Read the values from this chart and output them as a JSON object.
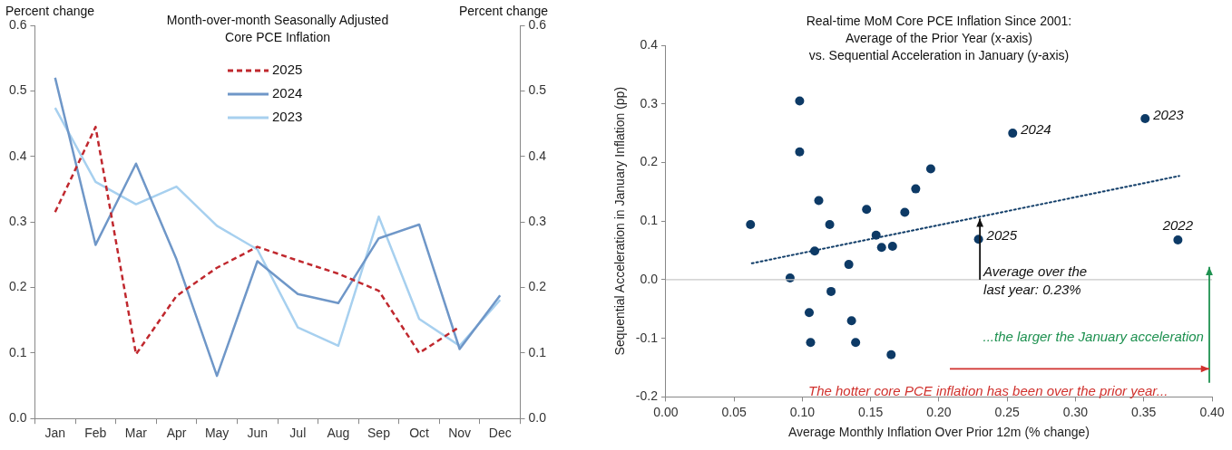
{
  "chart_data": [
    {
      "type": "line",
      "title": "Month-over-month Seasonally Adjusted\nCore PCE Inflation",
      "ylabel": "Percent change",
      "y2label": "Percent change",
      "categories": [
        "Jan",
        "Feb",
        "Mar",
        "Apr",
        "May",
        "Jun",
        "Jul",
        "Aug",
        "Sep",
        "Oct",
        "Nov",
        "Dec"
      ],
      "series": [
        {
          "name": "2025",
          "color": "#c0282e",
          "line_style": "dashed",
          "values": [
            0.315,
            0.445,
            0.098,
            0.187,
            0.23,
            0.262,
            0.241,
            0.221,
            0.195,
            0.1,
            0.14,
            null
          ]
        },
        {
          "name": "2024",
          "color": "#6f97c8",
          "line_style": "solid",
          "values": [
            0.52,
            0.265,
            0.389,
            0.243,
            0.065,
            0.24,
            0.19,
            0.176,
            0.275,
            0.296,
            0.106,
            0.188
          ]
        },
        {
          "name": "2023",
          "color": "#a7d0ef",
          "line_style": "solid",
          "values": [
            0.474,
            0.361,
            0.327,
            0.354,
            0.294,
            0.258,
            0.139,
            0.111,
            0.308,
            0.152,
            0.111,
            0.181
          ]
        }
      ],
      "ylim": [
        0,
        0.6
      ],
      "yticks": [
        {
          "value": 0,
          "label": "0.0"
        },
        0.1,
        0.2,
        0.3,
        0.4,
        0.5,
        0.6
      ],
      "y2lim": [
        0,
        0.6
      ],
      "y2ticks": [
        {
          "value": 0,
          "label": "0.0"
        },
        0.1,
        0.2,
        0.3,
        0.4,
        0.5,
        0.6
      ],
      "legend": "top",
      "marker": "none"
    },
    {
      "type": "scatter",
      "title": "Real-time MoM Core PCE Inflation Since 2001:\nAverage of the Prior Year (x-axis)\nvs. Sequential Acceleration in January (y-axis)",
      "xlabel": "Average Monthly Inflation Over Prior 12m (% change)",
      "ylabel": "Sequential Acceleration in January Inflation (pp)",
      "series": [
        {
          "type": "scatter",
          "color": "#0d3a66",
          "marker": "circle",
          "x": [
            0.062,
            0.098,
            0.098,
            0.112,
            0.12,
            0.147,
            0.154,
            0.158,
            0.166,
            0.175,
            0.183,
            0.194,
            0.109,
            0.091,
            0.134,
            0.121,
            0.105,
            0.136,
            0.106,
            0.139,
            0.165,
            0.254,
            0.351,
            0.375,
            0.229
          ],
          "values": [
            0.094,
            0.305,
            0.218,
            0.135,
            0.094,
            0.12,
            0.076,
            0.055,
            0.057,
            0.115,
            0.155,
            0.189,
            0.049,
            0.003,
            0.026,
            -0.02,
            -0.056,
            -0.07,
            -0.107,
            -0.107,
            -0.128,
            0.25,
            0.275,
            0.068,
            0.069
          ]
        },
        {
          "type": "line",
          "color": "#0d3a66",
          "marker": "none",
          "line_style": "dotted",
          "x": [
            0.063,
            0.376
          ],
          "values": [
            0.028,
            0.177
          ]
        }
      ],
      "xlim": [
        0,
        0.4
      ],
      "xticks": [
        {
          "value": 0,
          "label": "0.00"
        },
        {
          "value": 0.05,
          "label": "0.05"
        },
        {
          "value": 0.1,
          "label": "0.10"
        },
        {
          "value": 0.15,
          "label": "0.15"
        },
        {
          "value": 0.2,
          "label": "0.20"
        },
        {
          "value": 0.25,
          "label": "0.25"
        },
        {
          "value": 0.3,
          "label": "0.30"
        },
        {
          "value": 0.35,
          "label": "0.35"
        },
        {
          "value": 0.4,
          "label": "0.40"
        }
      ],
      "ylim": [
        -0.2,
        0.4
      ],
      "yticks": [
        -0.2,
        -0.1,
        {
          "value": 0,
          "label": "0.0"
        },
        0.1,
        0.2,
        0.3,
        0.4
      ],
      "ref_lines": [
        {
          "axis": "y",
          "value": 0,
          "color": "#c8c8c8"
        }
      ],
      "annotations": [
        {
          "text": "2024",
          "x": 0.254,
          "y": 0.25
        },
        {
          "text": "2023",
          "x": 0.351,
          "y": 0.275
        },
        {
          "text": "2022",
          "x": 0.375,
          "y": 0.068
        },
        {
          "text": "2025",
          "x": 0.229,
          "y": 0.069
        },
        {
          "text": "Average over the\nlast year: 0.23%",
          "x": 0.23,
          "y": 0
        },
        "...the larger the January acceleration",
        "The hotter core PCE inflation has been over the prior year..."
      ]
    }
  ]
}
